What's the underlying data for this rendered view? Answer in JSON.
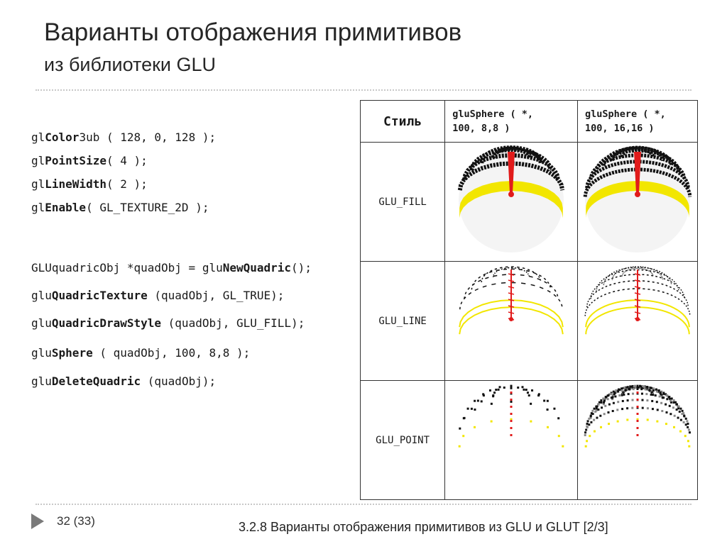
{
  "slide": {
    "title": "Варианты отображения примитивов",
    "subtitle": "из библиотеки GLU"
  },
  "code": [
    {
      "parts": [
        {
          "t": "gl",
          "b": false
        },
        {
          "t": "Color",
          "b": true
        },
        {
          "t": "3ub ( 128, 0, 128 );",
          "b": false
        }
      ]
    },
    {
      "parts": [
        {
          "t": "gl",
          "b": false
        },
        {
          "t": "PointSize",
          "b": true
        },
        {
          "t": "( 4 );",
          "b": false
        }
      ]
    },
    {
      "parts": [
        {
          "t": "gl",
          "b": false
        },
        {
          "t": "LineWidth",
          "b": true
        },
        {
          "t": "( 2 );",
          "b": false
        }
      ]
    },
    {
      "parts": [
        {
          "t": "gl",
          "b": false
        },
        {
          "t": "Enable",
          "b": true
        },
        {
          "t": "( GL_TEXTURE_2D );",
          "b": false
        }
      ]
    },
    {
      "parts": [
        {
          "t": "GLUquadricObj *quadObj = glu",
          "b": false
        },
        {
          "t": "NewQuadric",
          "b": true
        },
        {
          "t": "();",
          "b": false
        }
      ]
    },
    {
      "parts": [
        {
          "t": "glu",
          "b": false
        },
        {
          "t": "QuadricTexture",
          "b": true
        },
        {
          "t": " (quadObj, GL_TRUE);",
          "b": false
        }
      ]
    },
    {
      "parts": [
        {
          "t": "glu",
          "b": false
        },
        {
          "t": "QuadricDrawStyle",
          "b": true
        },
        {
          "t": " (quadObj, GLU_FILL);",
          "b": false
        }
      ]
    },
    {
      "parts": [
        {
          "t": "glu",
          "b": false
        },
        {
          "t": "Sphere",
          "b": true
        },
        {
          "t": " ( quadObj, 100, 8,8 );",
          "b": false
        }
      ]
    },
    {
      "parts": [
        {
          "t": "glu",
          "b": false
        },
        {
          "t": "DeleteQuadric",
          "b": true
        },
        {
          "t": " (quadObj);",
          "b": false
        }
      ]
    }
  ],
  "table": {
    "header": {
      "style": "Стиль",
      "col1_line1": "gluSphere ( *,",
      "col1_line2": "100, 8,8 )",
      "col2_line1": "gluSphere ( *,",
      "col2_line2": "100, 16,16 )"
    },
    "rows": [
      {
        "label": "GLU_FILL"
      },
      {
        "label": "GLU_LINE"
      },
      {
        "label": "GLU_POINT"
      }
    ],
    "colors": {
      "stripe": "#111111",
      "axis": "#e11b1b",
      "base": "#f2e600"
    }
  },
  "footer": {
    "page": "32 (33)",
    "text": "3.2.8 Варианты отображения примитивов из GLU  и GLUT  [2/3]"
  }
}
